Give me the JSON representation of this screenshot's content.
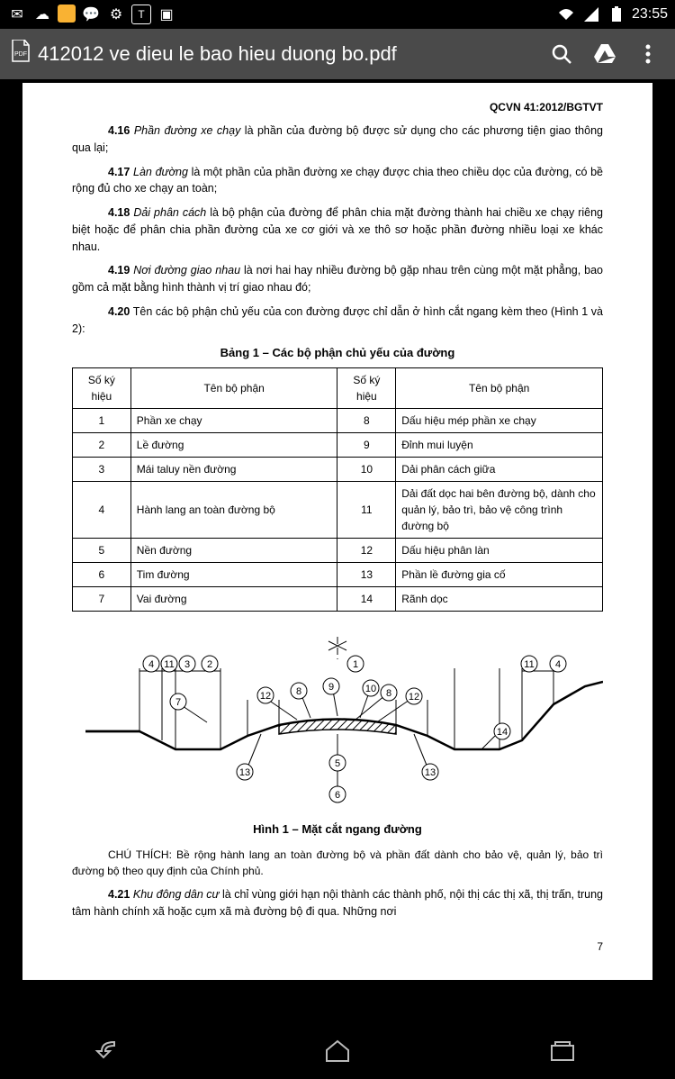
{
  "status": {
    "time": "23:55",
    "icons_left": [
      "mail",
      "cloud",
      "app",
      "msg",
      "settings",
      "text",
      "photo"
    ],
    "icons_right": [
      "wifi",
      "signal",
      "battery"
    ]
  },
  "appbar": {
    "title": "412012 ve dieu le bao hieu duong bo.pdf"
  },
  "doc": {
    "header": "QCVN 41:2012/BGTVT",
    "paragraphs": [
      {
        "num": "4.16",
        "term": "Phần đường xe chạy",
        "text": " là phần của đường bộ được sử dụng cho các phương tiện giao thông qua lại;"
      },
      {
        "num": "4.17",
        "term": "Làn đường",
        "text": " là một phần của phần đường xe chạy được chia theo chiều dọc của đường, có bề rộng đủ cho xe chạy an toàn;"
      },
      {
        "num": "4.18",
        "term": "Dải phân cách",
        "text": " là bộ phận của đường để phân chia mặt đường thành hai chiều xe chạy riêng biệt hoặc để phân chia phần đường của xe cơ giới và xe thô sơ hoặc phần đường nhiều loại xe khác nhau."
      },
      {
        "num": "4.19",
        "term": "Nơi đường giao nhau",
        "text": " là nơi hai hay nhiều đường bộ gặp nhau trên cùng một mặt phẳng, bao gồm cả mặt bằng hình thành vị trí giao nhau đó;"
      },
      {
        "num": "4.20",
        "term": "",
        "text": "Tên các bộ phận chủ yếu của con đường được chỉ dẫn ở hình cắt ngang kèm theo (Hình 1 và 2):"
      }
    ],
    "table_caption": "Bảng 1 – Các bộ phận chủ yếu của đường",
    "table": {
      "headers": [
        "Số ký hiệu",
        "Tên bộ phận",
        "Số ký hiệu",
        "Tên bộ phận"
      ],
      "rows": [
        [
          "1",
          "Phần xe chạy",
          "8",
          "Dấu hiệu mép phần xe chạy"
        ],
        [
          "2",
          "Lề đường",
          "9",
          "Đỉnh mui luyện"
        ],
        [
          "3",
          "Mái taluy nền đường",
          "10",
          "Dải phân cách giữa"
        ],
        [
          "4",
          "Hành lang an toàn đường bộ",
          "11",
          "Dải đất dọc hai bên đường bộ, dành cho quản lý, bảo trì, bảo vệ công trình đường bộ"
        ],
        [
          "5",
          "Nền đường",
          "12",
          "Dấu hiệu phân làn"
        ],
        [
          "6",
          "Tim đường",
          "13",
          "Phần lề đường gia cố"
        ],
        [
          "7",
          "Vai đường",
          "14",
          "Rãnh dọc"
        ]
      ]
    },
    "figure_caption": "Hình 1 – Mặt cắt ngang đường",
    "figure": {
      "labels": [
        "1",
        "2",
        "3",
        "4",
        "5",
        "6",
        "7",
        "8",
        "9",
        "10",
        "11",
        "12",
        "13",
        "14"
      ],
      "colors": {
        "line": "#000",
        "hatch": "#000",
        "bg": "#fff"
      }
    },
    "note_prefix": "CHÚ THÍCH:",
    "note": " Bề rộng hành lang an toàn đường bộ và phần đất dành cho bảo vệ, quản lý, bảo trì đường bộ theo quy định của Chính phủ.",
    "p421": {
      "num": "4.21",
      "term": "Khu đông dân cư",
      "text": " là chỉ vùng giới hạn nội thành các thành phố, nội thị các thị xã, thị trấn, trung tâm hành chính xã hoặc cụm xã mà đường bộ đi qua. Những nơi"
    },
    "page_num": "7"
  }
}
